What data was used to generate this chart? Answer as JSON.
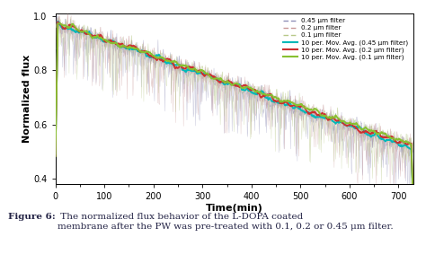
{
  "title": "",
  "xlabel": "Time(min)",
  "ylabel": "Normalized flux",
  "xlim": [
    0,
    730
  ],
  "ylim": [
    0.38,
    1.01
  ],
  "yticks": [
    0.4,
    0.6,
    0.8,
    1.0
  ],
  "xticks": [
    0,
    100,
    200,
    300,
    400,
    500,
    600,
    700
  ],
  "raw_colors": {
    "filter_045": "#9090b8",
    "filter_02": "#c89898",
    "filter_01": "#b8c888"
  },
  "ma_colors": {
    "ma_045": "#00b8b8",
    "ma_02": "#cc3030",
    "ma_01": "#88c030"
  },
  "legend_entries": [
    "0.45 μm filter",
    "0.2 μm filter",
    "0.1 μm filter",
    "10 per. Mov. Avg. (0.45 μm filter)",
    "10 per. Mov. Avg. (0.2 μm filter)",
    "10 per. Mov. Avg. (0.1 μm filter)"
  ],
  "seed": 42,
  "n_points": 730,
  "caption_bold": "Figure 6:",
  "caption_text": " The normalized flux behavior of the ​L-DOPA coated\nmembrane after the PW was pre-treated with 0.1, 0.2 or 0.45 μm filter."
}
